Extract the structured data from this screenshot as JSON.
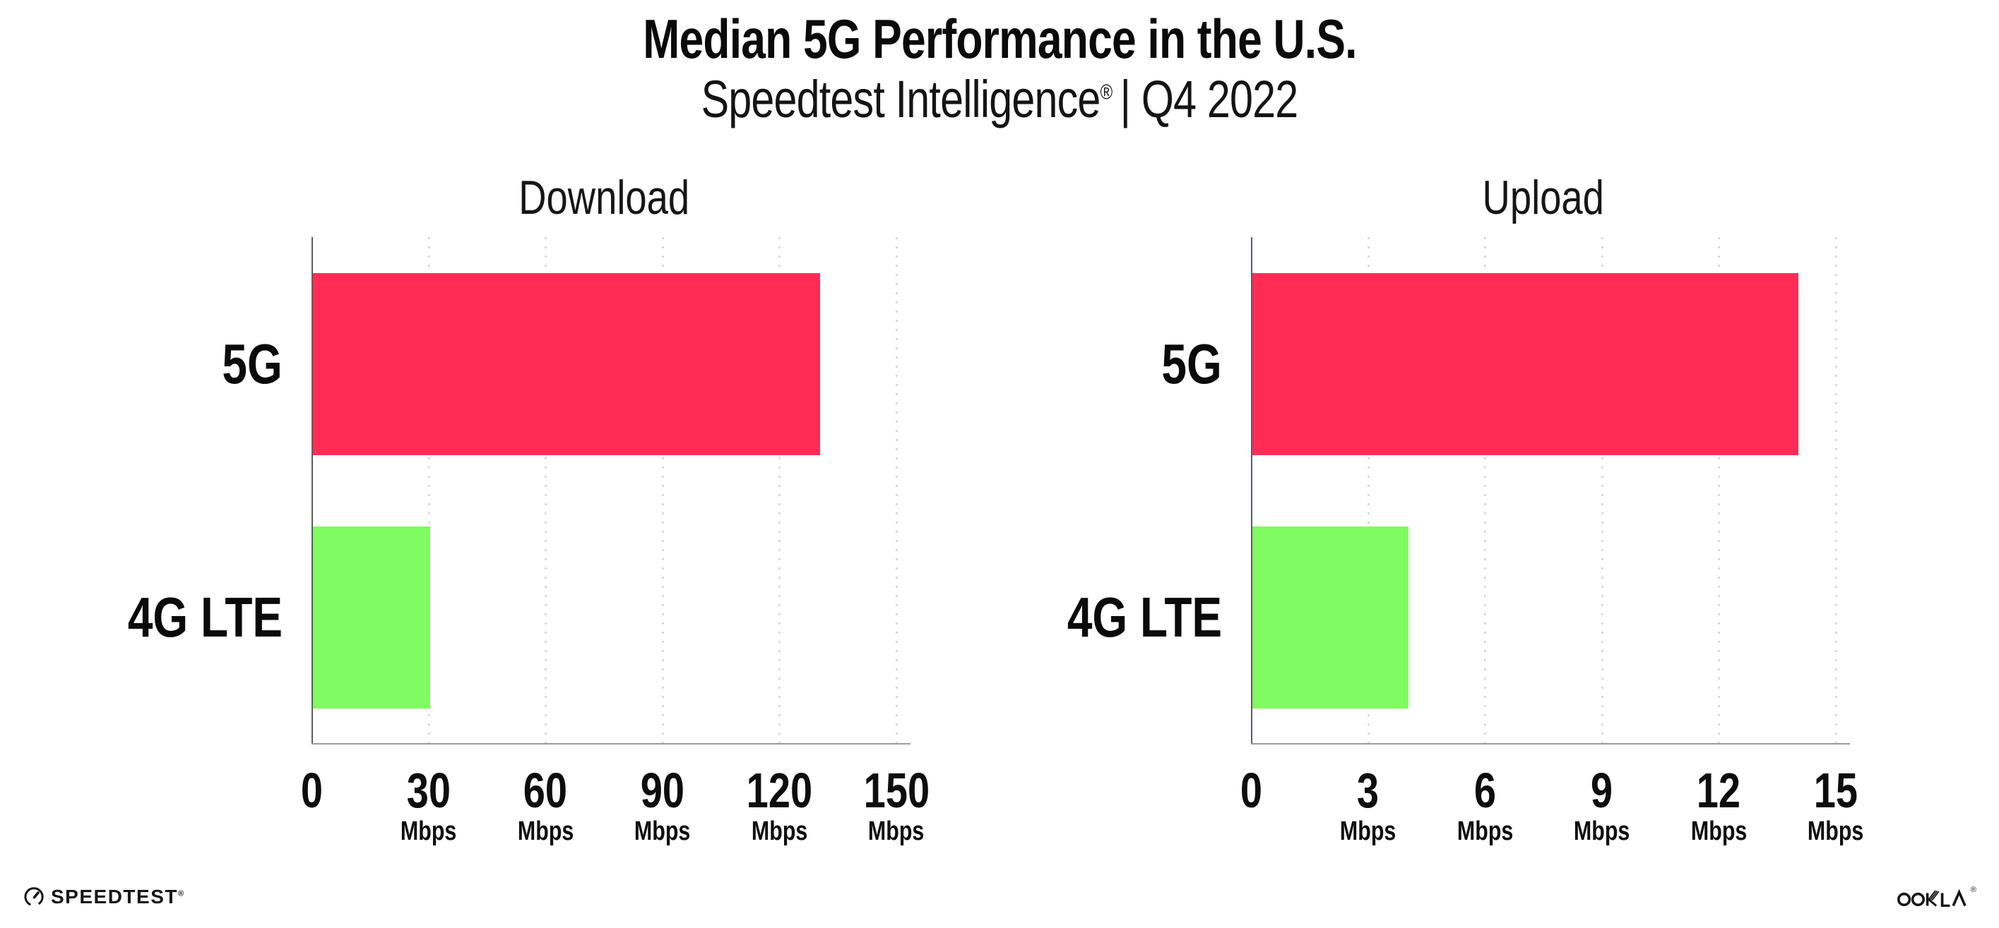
{
  "page": {
    "title": "Median 5G Performance in the U.S.",
    "subtitle_brand": "Speedtest Intelligence",
    "subtitle_reg": "®",
    "subtitle_rest": "| Q4 2022"
  },
  "footer": {
    "speedtest_logo_text": "SPEEDTEST",
    "speedtest_reg": "®",
    "ookla_logo_text": "OOKLA",
    "ookla_reg": "®"
  },
  "colors": {
    "bar_5g": "#ff2d55",
    "bar_4g_lte": "#80fb61",
    "gridline": "#dadae6",
    "y_axis": "#5c5c66",
    "x_axis": "#9b9ba3",
    "text": "#0d0d0d"
  },
  "chart_data": [
    {
      "type": "bar",
      "orientation": "horizontal",
      "panel_title": "Download",
      "categories": [
        "5G",
        "4G LTE"
      ],
      "values": [
        130,
        30
      ],
      "value_unit": "Mbps",
      "xlim": [
        0,
        150
      ],
      "xticks": [
        0,
        30,
        60,
        90,
        120,
        150
      ],
      "xtick_unit": "Mbps",
      "grid": "vertical dotted, no unit label under 0",
      "legend": "none",
      "bar_colors": [
        "#ff2d55",
        "#80fb61"
      ]
    },
    {
      "type": "bar",
      "orientation": "horizontal",
      "panel_title": "Upload",
      "categories": [
        "5G",
        "4G LTE"
      ],
      "values": [
        14,
        4
      ],
      "value_unit": "Mbps",
      "xlim": [
        0,
        15
      ],
      "xticks": [
        0,
        3,
        6,
        9,
        12,
        15
      ],
      "xtick_unit": "Mbps",
      "grid": "vertical dotted, no unit label under 0",
      "legend": "none",
      "bar_colors": [
        "#ff2d55",
        "#80fb61"
      ]
    }
  ]
}
